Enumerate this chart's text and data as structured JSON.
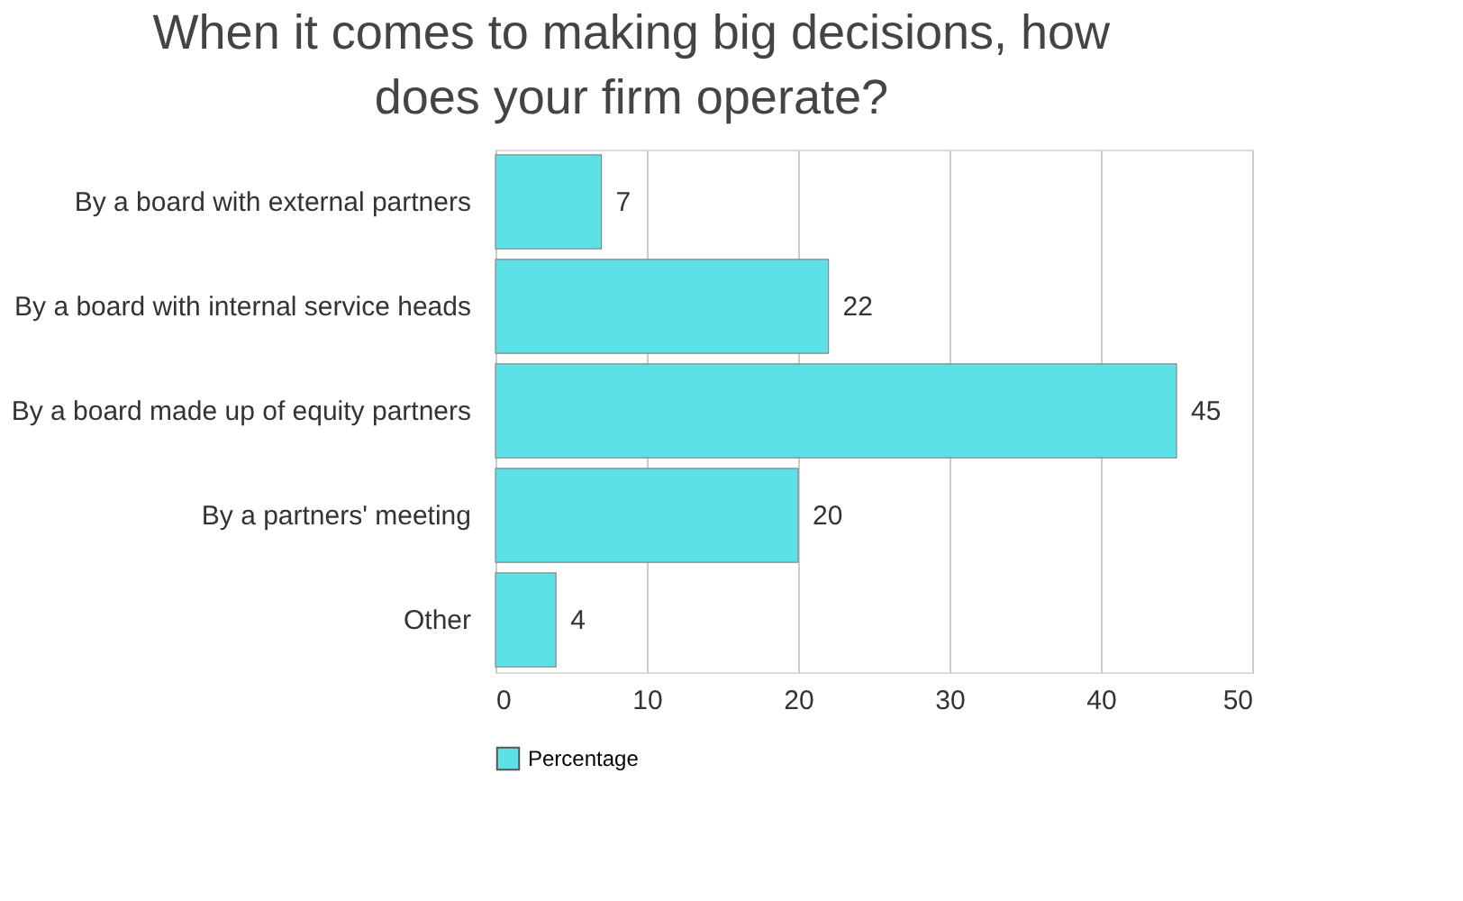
{
  "chart_data": {
    "type": "bar",
    "orientation": "horizontal",
    "title": "When it comes to making big decisions, how does your firm operate?",
    "categories": [
      "By a board with external partners",
      "By a board with internal service heads",
      "By a board made up of equity partners",
      "By a partners' meeting",
      "Other"
    ],
    "series": [
      {
        "name": "Percentage",
        "color": "#5ce1e6",
        "values": [
          7,
          22,
          45,
          20,
          4
        ]
      }
    ],
    "xlim": [
      0,
      50
    ],
    "xticks": [
      0,
      10,
      20,
      30,
      40,
      50
    ],
    "grid": "x",
    "legend": "bottom",
    "data_labels": true
  }
}
